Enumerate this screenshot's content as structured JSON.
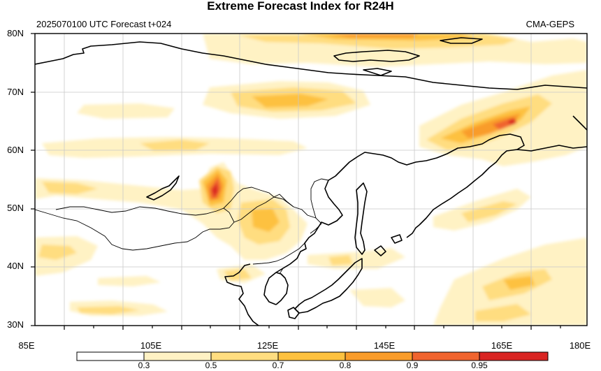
{
  "title": "Extreme Forecast Index for R24H",
  "subtitle_left": "2025070100 UTC Forecast t+024",
  "subtitle_right": "CMA-GEPS",
  "map": {
    "lon_range": [
      85,
      180
    ],
    "lat_range": [
      30,
      80
    ],
    "x_ticks": [
      "85E",
      "105E",
      "125E",
      "145E",
      "165E",
      "180E"
    ],
    "y_ticks": [
      "30N",
      "40N",
      "50N",
      "60N",
      "70N",
      "80N"
    ],
    "grid": true,
    "projection": "cylindrical equidistant"
  },
  "colorbar": {
    "labels": [
      "0.3",
      "0.5",
      "0.7",
      "0.8",
      "0.9",
      "0.95"
    ],
    "colors": [
      "#ffffff",
      "#fff2c4",
      "#ffdd80",
      "#fdc13f",
      "#f99c2a",
      "#f0642e",
      "#d92523"
    ]
  },
  "colors": {
    "coast": "#000000",
    "border": "#000000",
    "grid": "#c8c8c8"
  }
}
